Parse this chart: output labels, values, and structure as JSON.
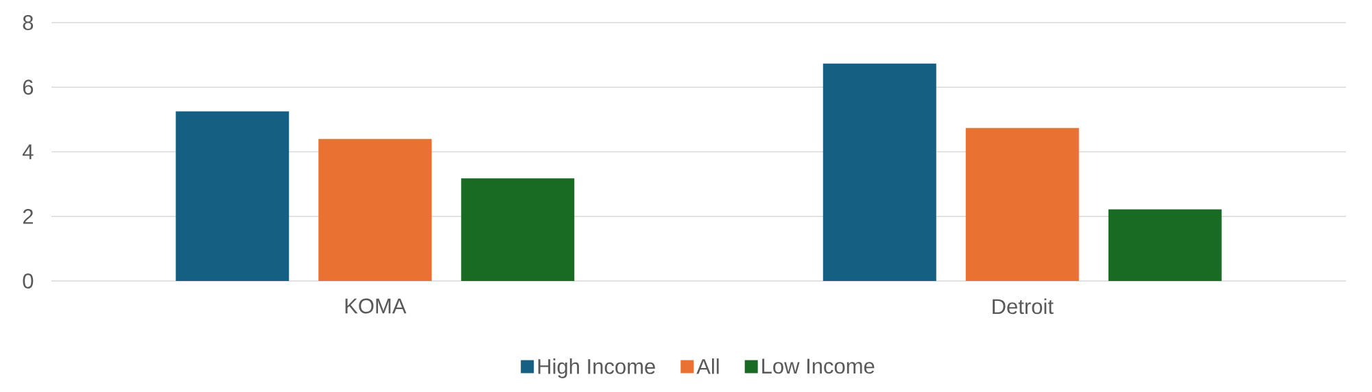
{
  "chart_data": {
    "type": "bar",
    "categories": [
      "KOMA",
      "Detroit"
    ],
    "series": [
      {
        "name": "High Income",
        "color": "#156082",
        "values": [
          5.25,
          6.73
        ]
      },
      {
        "name": "All",
        "color": "#e97132",
        "values": [
          4.4,
          4.74
        ]
      },
      {
        "name": "Low Income",
        "color": "#196b24",
        "values": [
          3.18,
          2.22
        ]
      }
    ],
    "ylim": [
      0,
      8
    ],
    "yticks": [
      0,
      2,
      4,
      6,
      8
    ],
    "grid": "y",
    "legend": "bottom"
  }
}
